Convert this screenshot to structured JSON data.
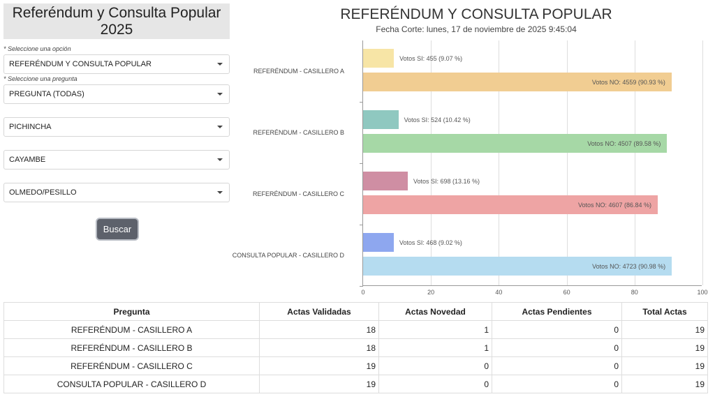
{
  "header": {
    "title": "Referéndum y Consulta Popular 2025"
  },
  "form": {
    "hint_option": "* Seleccione una opción",
    "option_value": "REFERÉNDUM Y CONSULTA POPULAR",
    "hint_question": "* Seleccione una pregunta",
    "question_value": "PREGUNTA (TODAS)",
    "province_value": "PICHINCHA",
    "canton_value": "CAYAMBE",
    "parish_value": "OLMEDO/PESILLO",
    "search_label": "Buscar"
  },
  "chart_data": {
    "type": "bar",
    "orientation": "horizontal",
    "title": "REFERÉNDUM Y CONSULTA POPULAR",
    "subtitle": "Fecha Corte: lunes, 17 de noviembre de 2025 9:45:04",
    "xlim": [
      0,
      100
    ],
    "xticks": [
      "0",
      "20",
      "40",
      "60",
      "80",
      "100"
    ],
    "categories": [
      "REFERÉNDUM - CASILLERO A",
      "REFERÉNDUM - CASILLERO B",
      "REFERÉNDUM - CASILLERO C",
      "CONSULTA POPULAR - CASILLERO D"
    ],
    "series": [
      {
        "name": "Votos SI",
        "values": [
          9.07,
          10.42,
          13.16,
          9.02
        ],
        "labels": [
          "Votos SI: 455 (9.07 %)",
          "Votos SI: 524 (10.42 %)",
          "Votos SI: 698 (13.16 %)",
          "Votos SI: 468 (9.02 %)"
        ],
        "colors": [
          "#f7e5a6",
          "#8fc8c0",
          "#cf8ea3",
          "#8ea7ef"
        ]
      },
      {
        "name": "Votos NO",
        "values": [
          90.93,
          89.58,
          86.84,
          90.98
        ],
        "labels": [
          "Votos NO: 4559 (90.93 %)",
          "Votos NO: 4507 (89.58 %)",
          "Votos NO: 4607 (86.84 %)",
          "Votos NO: 4723 (90.98 %)"
        ],
        "colors": [
          "#f1cd92",
          "#a6d8a6",
          "#eea4a4",
          "#b5dcf0"
        ]
      }
    ]
  },
  "table": {
    "headers": [
      "Pregunta",
      "Actas Validadas",
      "Actas Novedad",
      "Actas Pendientes",
      "Total Actas"
    ],
    "rows": [
      [
        "REFERÉNDUM - CASILLERO A",
        "18",
        "1",
        "0",
        "19"
      ],
      [
        "REFERÉNDUM - CASILLERO B",
        "18",
        "1",
        "0",
        "19"
      ],
      [
        "REFERÉNDUM - CASILLERO C",
        "19",
        "0",
        "0",
        "19"
      ],
      [
        "CONSULTA POPULAR - CASILLERO D",
        "19",
        "0",
        "0",
        "19"
      ]
    ]
  }
}
